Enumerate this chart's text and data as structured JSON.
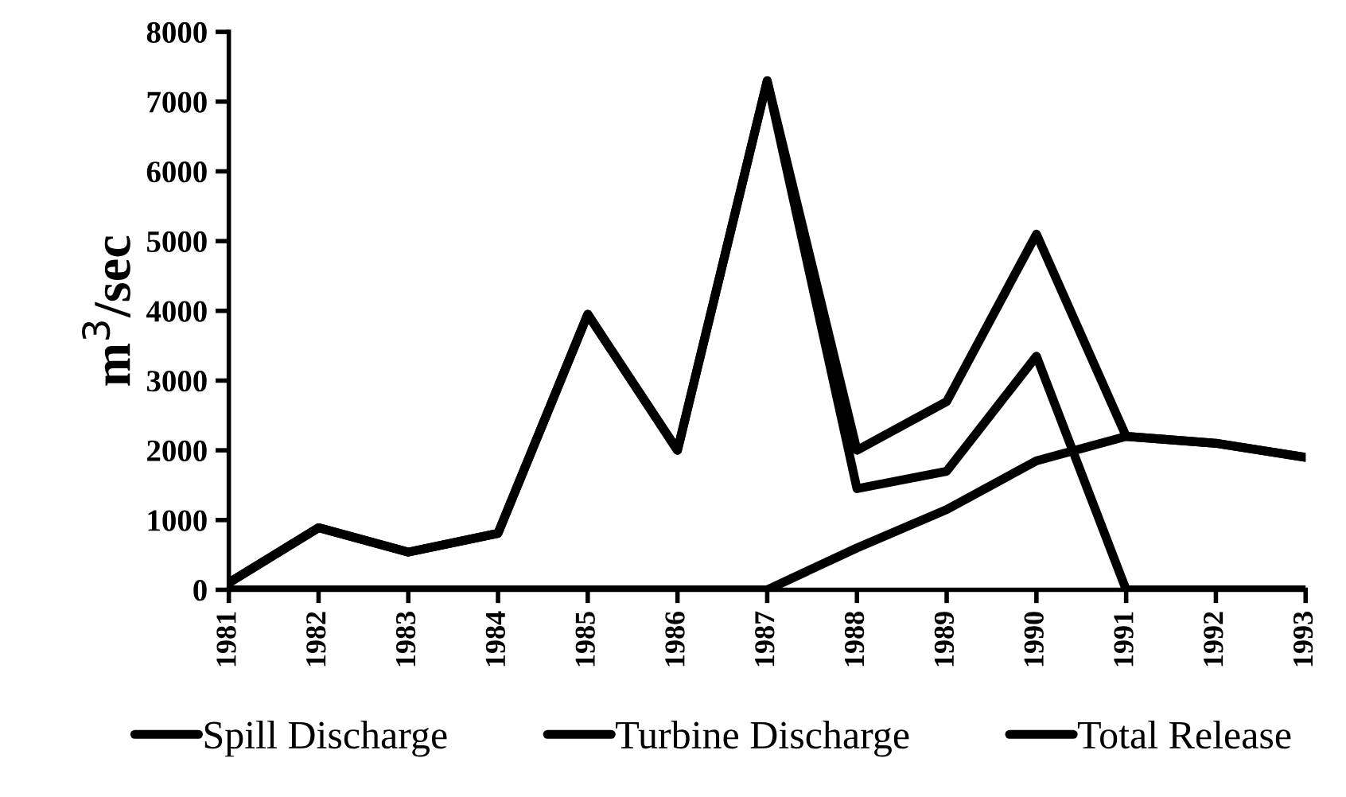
{
  "chart_data": {
    "type": "line",
    "ylabel": "m$^{3}$/sec",
    "categories": [
      "1981",
      "1982",
      "1983",
      "1984",
      "1985",
      "1986",
      "1987",
      "1988",
      "1989",
      "1990",
      "1991",
      "1992",
      "1993"
    ],
    "series": [
      {
        "name": "Spill Discharge",
        "color": "#000000",
        "values": [
          100,
          890,
          540,
          810,
          3950,
          2000,
          7300,
          1450,
          1700,
          3350,
          0,
          0,
          0
        ]
      },
      {
        "name": "Turbine Discharge",
        "color": "#000000",
        "values": [
          0,
          0,
          0,
          0,
          0,
          0,
          0,
          600,
          1150,
          1850,
          2200,
          2100,
          1900
        ]
      },
      {
        "name": "Total Release",
        "color": "#000000",
        "values": [
          100,
          890,
          540,
          810,
          3950,
          2000,
          7300,
          2000,
          2700,
          5100,
          2200,
          2100,
          1900
        ]
      }
    ],
    "ylim": [
      0,
      8000
    ],
    "yticks": [
      0,
      1000,
      2000,
      3000,
      4000,
      5000,
      6000,
      7000,
      8000
    ],
    "grid": false,
    "legend": "bottom",
    "marker": "none",
    "line_style": "solid"
  }
}
